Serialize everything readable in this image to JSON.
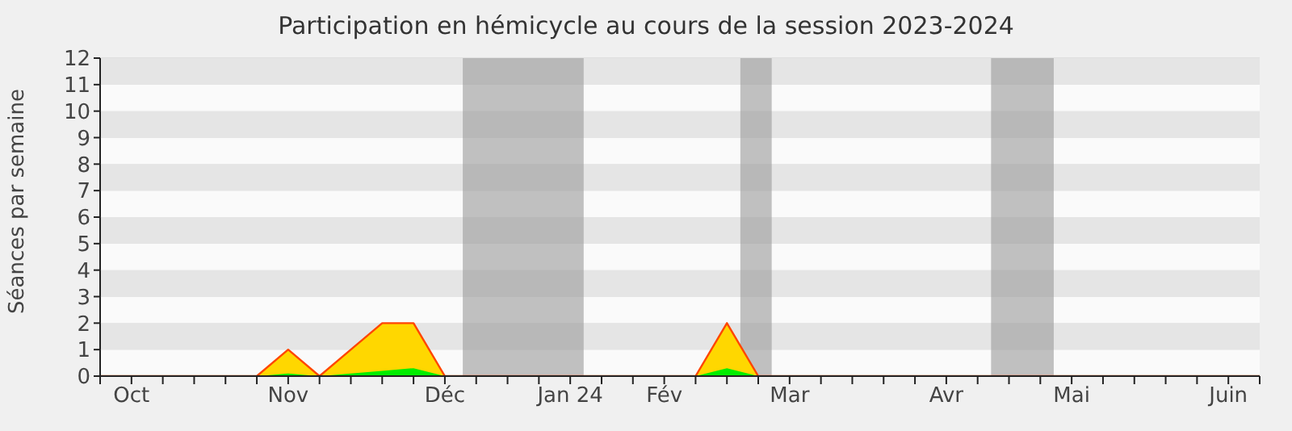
{
  "chart_data": {
    "type": "area",
    "title": "Participation en hémicycle au cours de la session 2023-2024",
    "ylabel": "Séances par semaine",
    "x": [
      "2023-10-02",
      "2023-10-09",
      "2023-10-16",
      "2023-10-23",
      "2023-10-30",
      "2023-11-06",
      "2023-11-13",
      "2023-11-20",
      "2023-11-27",
      "2023-12-04",
      "2023-12-11",
      "2023-12-18",
      "2023-12-25",
      "2024-01-01",
      "2024-01-08",
      "2024-01-15",
      "2024-01-22",
      "2024-01-29",
      "2024-02-05",
      "2024-02-12",
      "2024-02-19",
      "2024-02-26",
      "2024-03-04",
      "2024-03-11",
      "2024-03-18",
      "2024-03-25",
      "2024-04-01",
      "2024-04-08",
      "2024-04-15",
      "2024-04-22",
      "2024-04-29",
      "2024-05-06",
      "2024-05-13",
      "2024-05-20",
      "2024-05-27",
      "2024-06-03",
      "2024-06-10",
      "2024-06-17"
    ],
    "series": [
      {
        "color": "#ffd700",
        "values": [
          0,
          0,
          0,
          0,
          0,
          0,
          1,
          0,
          1,
          2,
          2,
          0,
          0,
          0,
          0,
          0,
          0,
          0,
          0,
          0,
          2,
          0,
          0,
          0,
          0,
          0,
          0,
          0,
          0,
          0,
          0,
          0,
          0,
          0,
          0,
          0,
          0,
          0
        ]
      },
      {
        "color": "#00ee00",
        "values": [
          0,
          0,
          0,
          0,
          0,
          0,
          0.1,
          0,
          0.1,
          0.2,
          0.3,
          0,
          0,
          0,
          0,
          0,
          0,
          0,
          0,
          0,
          0.3,
          0,
          0,
          0,
          0,
          0,
          0,
          0,
          0,
          0,
          0,
          0,
          0,
          0,
          0,
          0,
          0,
          0
        ]
      }
    ],
    "xlim": [
      "2023-10-02",
      "2024-06-17"
    ],
    "xticks": [
      {
        "value": "2023-10-02",
        "label": null
      },
      {
        "value": "2023-10-09",
        "label": "Oct"
      },
      {
        "value": "2023-10-16",
        "label": null
      },
      {
        "value": "2023-10-23",
        "label": null
      },
      {
        "value": "2023-10-30",
        "label": null
      },
      {
        "value": "2023-11-06",
        "label": null
      },
      {
        "value": "2023-11-13",
        "label": "Nov"
      },
      {
        "value": "2023-11-20",
        "label": null
      },
      {
        "value": "2023-11-27",
        "label": null
      },
      {
        "value": "2023-12-04",
        "label": null
      },
      {
        "value": "2023-12-11",
        "label": null
      },
      {
        "value": "2023-12-18",
        "label": "Déc"
      },
      {
        "value": "2023-12-25",
        "label": null
      },
      {
        "value": "2024-01-01",
        "label": null
      },
      {
        "value": "2024-01-08",
        "label": null
      },
      {
        "value": "2024-01-15",
        "label": "Jan 24"
      },
      {
        "value": "2024-01-22",
        "label": null
      },
      {
        "value": "2024-01-29",
        "label": null
      },
      {
        "value": "2024-02-05",
        "label": "Fév"
      },
      {
        "value": "2024-02-12",
        "label": null
      },
      {
        "value": "2024-02-19",
        "label": null
      },
      {
        "value": "2024-02-26",
        "label": null
      },
      {
        "value": "2024-03-04",
        "label": "Mar"
      },
      {
        "value": "2024-03-11",
        "label": null
      },
      {
        "value": "2024-03-18",
        "label": null
      },
      {
        "value": "2024-03-25",
        "label": null
      },
      {
        "value": "2024-04-01",
        "label": null
      },
      {
        "value": "2024-04-08",
        "label": "Avr"
      },
      {
        "value": "2024-04-15",
        "label": null
      },
      {
        "value": "2024-04-22",
        "label": null
      },
      {
        "value": "2024-04-29",
        "label": null
      },
      {
        "value": "2024-05-06",
        "label": "Mai"
      },
      {
        "value": "2024-05-13",
        "label": null
      },
      {
        "value": "2024-05-20",
        "label": null
      },
      {
        "value": "2024-05-27",
        "label": null
      },
      {
        "value": "2024-06-03",
        "label": null
      },
      {
        "value": "2024-06-10",
        "label": "Juin"
      },
      {
        "value": "2024-06-17",
        "label": null
      }
    ],
    "ylim": [
      0,
      12
    ],
    "yticks": [
      0,
      1,
      2,
      3,
      4,
      5,
      6,
      7,
      8,
      9,
      10,
      11,
      12
    ],
    "grid": "y",
    "bands": [
      {
        "axis": "x",
        "from": "2023-12-22",
        "to": "2024-01-18",
        "color": "#999999"
      },
      {
        "axis": "x",
        "from": "2024-02-22",
        "to": "2024-02-29",
        "color": "#999999"
      },
      {
        "axis": "x",
        "from": "2024-04-18",
        "to": "2024-05-02",
        "color": "#999999"
      }
    ]
  }
}
